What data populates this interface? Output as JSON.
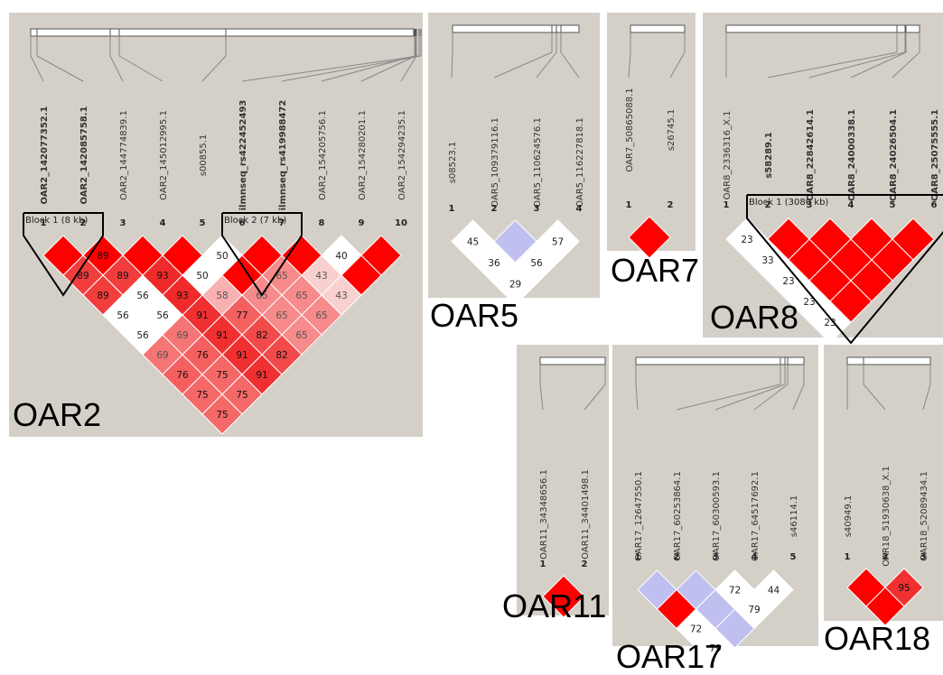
{
  "panels": [
    {
      "id": "oar2",
      "label": "OAR2",
      "markers": [
        {
          "name": "OAR2_142077352.1",
          "bold": true
        },
        {
          "name": "OAR2_142085758.1",
          "bold": true
        },
        {
          "name": "OAR2_144774839.1",
          "bold": false
        },
        {
          "name": "OAR2_145012995.1",
          "bold": false
        },
        {
          "name": "s00855.1",
          "bold": false
        },
        {
          "name": "ilmnseq_rs422452493",
          "bold": true
        },
        {
          "name": "ilmnseq_rs419988472",
          "bold": true
        },
        {
          "name": "OAR2_154205756.1",
          "bold": false
        },
        {
          "name": "OAR2_154280201.1",
          "bold": false
        },
        {
          "name": "OAR2_154294235.1",
          "bold": false
        }
      ],
      "indices": [
        "1",
        "2",
        "3",
        "4",
        "5",
        "6",
        "7",
        "8",
        "9",
        "10"
      ],
      "blocks": [
        {
          "label": "Block 1 (8 kb)",
          "start": 1,
          "end": 2
        },
        {
          "label": "Block 2 (7 kb)",
          "start": 6,
          "end": 7
        }
      ],
      "cells": [
        {
          "i": 1,
          "j": 2,
          "v": "",
          "c": "#ff0000"
        },
        {
          "i": 2,
          "j": 3,
          "v": "89",
          "c": "#ff0000"
        },
        {
          "i": 3,
          "j": 4,
          "v": "",
          "c": "#ff0000"
        },
        {
          "i": 4,
          "j": 5,
          "v": "",
          "c": "#ff0000"
        },
        {
          "i": 5,
          "j": 6,
          "v": "50",
          "c": "#ffffff"
        },
        {
          "i": 6,
          "j": 7,
          "v": "",
          "c": "#ff0000"
        },
        {
          "i": 7,
          "j": 8,
          "v": "",
          "c": "#ff0000"
        },
        {
          "i": 8,
          "j": 9,
          "v": "40",
          "c": "#ffffff"
        },
        {
          "i": 9,
          "j": 10,
          "v": "",
          "c": "#ff0000"
        },
        {
          "i": 1,
          "j": 3,
          "v": "89",
          "c": "#f23d3d"
        },
        {
          "i": 2,
          "j": 4,
          "v": "89",
          "c": "#f23d3d"
        },
        {
          "i": 3,
          "j": 5,
          "v": "93",
          "c": "#ef2a2a"
        },
        {
          "i": 4,
          "j": 6,
          "v": "50",
          "c": "#ffffff"
        },
        {
          "i": 5,
          "j": 7,
          "v": "",
          "c": "#ff0000"
        },
        {
          "i": 6,
          "j": 8,
          "v": "65",
          "c": "#f78a8a"
        },
        {
          "i": 7,
          "j": 9,
          "v": "43",
          "c": "#f9d0d0"
        },
        {
          "i": 8,
          "j": 10,
          "v": "",
          "c": "#ff0000"
        },
        {
          "i": 1,
          "j": 4,
          "v": "89",
          "c": "#f23d3d"
        },
        {
          "i": 2,
          "j": 5,
          "v": "56",
          "c": "#ffffff"
        },
        {
          "i": 3,
          "j": 6,
          "v": "93",
          "c": "#ef2a2a"
        },
        {
          "i": 4,
          "j": 7,
          "v": "58",
          "c": "#f8b0b0"
        },
        {
          "i": 5,
          "j": 8,
          "v": "65",
          "c": "#f78a8a"
        },
        {
          "i": 6,
          "j": 9,
          "v": "65",
          "c": "#f78a8a"
        },
        {
          "i": 7,
          "j": 10,
          "v": "43",
          "c": "#f9d0d0"
        },
        {
          "i": 1,
          "j": 5,
          "v": "56",
          "c": "#ffffff"
        },
        {
          "i": 2,
          "j": 6,
          "v": "56",
          "c": "#ffffff"
        },
        {
          "i": 3,
          "j": 7,
          "v": "91",
          "c": "#f03030"
        },
        {
          "i": 4,
          "j": 8,
          "v": "77",
          "c": "#f46060"
        },
        {
          "i": 5,
          "j": 9,
          "v": "65",
          "c": "#f78a8a"
        },
        {
          "i": 6,
          "j": 10,
          "v": "65",
          "c": "#f78a8a"
        },
        {
          "i": 1,
          "j": 6,
          "v": "56",
          "c": "#ffffff"
        },
        {
          "i": 2,
          "j": 7,
          "v": "69",
          "c": "#f57575"
        },
        {
          "i": 3,
          "j": 8,
          "v": "91",
          "c": "#f03030"
        },
        {
          "i": 4,
          "j": 9,
          "v": "82",
          "c": "#f24a4a"
        },
        {
          "i": 5,
          "j": 10,
          "v": "65",
          "c": "#f78a8a"
        },
        {
          "i": 1,
          "j": 7,
          "v": "69",
          "c": "#f57575"
        },
        {
          "i": 2,
          "j": 8,
          "v": "76",
          "c": "#f46060"
        },
        {
          "i": 3,
          "j": 9,
          "v": "91",
          "c": "#f03030"
        },
        {
          "i": 4,
          "j": 10,
          "v": "82",
          "c": "#f24a4a"
        },
        {
          "i": 1,
          "j": 8,
          "v": "76",
          "c": "#f46060"
        },
        {
          "i": 2,
          "j": 9,
          "v": "75",
          "c": "#f46868"
        },
        {
          "i": 3,
          "j": 10,
          "v": "91",
          "c": "#f03030"
        },
        {
          "i": 1,
          "j": 9,
          "v": "75",
          "c": "#f46868"
        },
        {
          "i": 2,
          "j": 10,
          "v": "75",
          "c": "#f46868"
        },
        {
          "i": 1,
          "j": 10,
          "v": "75",
          "c": "#f46868"
        }
      ]
    },
    {
      "id": "oar5",
      "label": "OAR5",
      "markers": [
        {
          "name": "s08523.1",
          "bold": false
        },
        {
          "name": "OAR5_109379116.1",
          "bold": false
        },
        {
          "name": "OAR5_110624576.1",
          "bold": false
        },
        {
          "name": "OAR5_116227818.1",
          "bold": false
        }
      ],
      "indices": [
        "1",
        "2",
        "3",
        "4"
      ],
      "blocks": [],
      "cells": [
        {
          "i": 1,
          "j": 2,
          "v": "45",
          "c": "#ffffff"
        },
        {
          "i": 2,
          "j": 3,
          "v": "",
          "c": "#c0c0f0"
        },
        {
          "i": 3,
          "j": 4,
          "v": "57",
          "c": "#ffffff"
        },
        {
          "i": 1,
          "j": 3,
          "v": "36",
          "c": "#ffffff"
        },
        {
          "i": 2,
          "j": 4,
          "v": "56",
          "c": "#ffffff"
        },
        {
          "i": 1,
          "j": 4,
          "v": "29",
          "c": "#ffffff"
        }
      ]
    },
    {
      "id": "oar7",
      "label": "OAR7",
      "markers": [
        {
          "name": "OAR7_50865088.1",
          "bold": false
        },
        {
          "name": "s26745.1",
          "bold": false
        }
      ],
      "indices": [
        "1",
        "2"
      ],
      "blocks": [],
      "cells": [
        {
          "i": 1,
          "j": 2,
          "v": "",
          "c": "#ff0000"
        }
      ]
    },
    {
      "id": "oar8",
      "label": "OAR8",
      "markers": [
        {
          "name": "OAR8_2336316_X.1",
          "bold": false
        },
        {
          "name": "s58289.1",
          "bold": true
        },
        {
          "name": "OAR8_22842614.1",
          "bold": true
        },
        {
          "name": "OAR8_24000338.1",
          "bold": true
        },
        {
          "name": "OAR8_24026504.1",
          "bold": true
        },
        {
          "name": "OAR8_25075555.1",
          "bold": true
        }
      ],
      "indices": [
        "1",
        "2",
        "3",
        "4",
        "5",
        "6"
      ],
      "blocks": [
        {
          "label": "Block 1 (3080 kb)",
          "start": 2,
          "end": 6
        }
      ],
      "cells": [
        {
          "i": 1,
          "j": 2,
          "v": "23",
          "c": "#ffffff"
        },
        {
          "i": 2,
          "j": 3,
          "v": "",
          "c": "#ff0000"
        },
        {
          "i": 3,
          "j": 4,
          "v": "",
          "c": "#ff0000"
        },
        {
          "i": 4,
          "j": 5,
          "v": "",
          "c": "#ff0000"
        },
        {
          "i": 5,
          "j": 6,
          "v": "",
          "c": "#ff0000"
        },
        {
          "i": 1,
          "j": 3,
          "v": "33",
          "c": "#ffffff"
        },
        {
          "i": 2,
          "j": 4,
          "v": "",
          "c": "#ff0000"
        },
        {
          "i": 3,
          "j": 5,
          "v": "",
          "c": "#ff0000"
        },
        {
          "i": 4,
          "j": 6,
          "v": "",
          "c": "#ff0000"
        },
        {
          "i": 1,
          "j": 4,
          "v": "23",
          "c": "#ffffff"
        },
        {
          "i": 2,
          "j": 5,
          "v": "",
          "c": "#ff0000"
        },
        {
          "i": 3,
          "j": 6,
          "v": "",
          "c": "#ff0000"
        },
        {
          "i": 1,
          "j": 5,
          "v": "23",
          "c": "#ffffff"
        },
        {
          "i": 2,
          "j": 6,
          "v": "",
          "c": "#ff0000"
        },
        {
          "i": 1,
          "j": 6,
          "v": "23",
          "c": "#ffffff"
        }
      ]
    },
    {
      "id": "oar11",
      "label": "OAR11",
      "markers": [
        {
          "name": "OAR11_34348656.1",
          "bold": false
        },
        {
          "name": "OAR11_34401498.1",
          "bold": false
        }
      ],
      "indices": [
        "1",
        "2"
      ],
      "blocks": [],
      "cells": [
        {
          "i": 1,
          "j": 2,
          "v": "",
          "c": "#ff0000"
        }
      ]
    },
    {
      "id": "oar17",
      "label": "OAR17",
      "markers": [
        {
          "name": "OAR17_12647550.1",
          "bold": false
        },
        {
          "name": "OAR17_60253864.1",
          "bold": false
        },
        {
          "name": "OAR17_60300593.1",
          "bold": false
        },
        {
          "name": "OAR17_64517692.1",
          "bold": false
        },
        {
          "name": "s46114.1",
          "bold": false
        }
      ],
      "indices": [
        "1",
        "2",
        "3",
        "4",
        "5"
      ],
      "blocks": [],
      "cells": [
        {
          "i": 1,
          "j": 2,
          "v": "",
          "c": "#c0c0f0"
        },
        {
          "i": 2,
          "j": 3,
          "v": "",
          "c": "#c0c0f0"
        },
        {
          "i": 3,
          "j": 4,
          "v": "72",
          "c": "#ffffff"
        },
        {
          "i": 4,
          "j": 5,
          "v": "44",
          "c": "#ffffff"
        },
        {
          "i": 1,
          "j": 3,
          "v": "",
          "c": "#ff0000"
        },
        {
          "i": 2,
          "j": 4,
          "v": "",
          "c": "#c0c0f0"
        },
        {
          "i": 3,
          "j": 5,
          "v": "79",
          "c": "#ffffff"
        },
        {
          "i": 1,
          "j": 4,
          "v": "72",
          "c": "#ffffff"
        },
        {
          "i": 2,
          "j": 5,
          "v": "",
          "c": "#c0c0f0"
        },
        {
          "i": 1,
          "j": 5,
          "v": "79",
          "c": "#ffffff"
        }
      ]
    },
    {
      "id": "oar18",
      "label": "OAR18",
      "markers": [
        {
          "name": "s40949.1",
          "bold": false
        },
        {
          "name": "OAR18_51930638_X.1",
          "bold": false
        },
        {
          "name": "OAR18_52089434.1",
          "bold": false
        }
      ],
      "indices": [
        "1",
        "2",
        "3"
      ],
      "blocks": [],
      "cells": [
        {
          "i": 1,
          "j": 2,
          "v": "",
          "c": "#ff0000"
        },
        {
          "i": 2,
          "j": 3,
          "v": "95",
          "c": "#f03030"
        },
        {
          "i": 1,
          "j": 3,
          "v": "",
          "c": "#ff0000"
        }
      ]
    }
  ]
}
